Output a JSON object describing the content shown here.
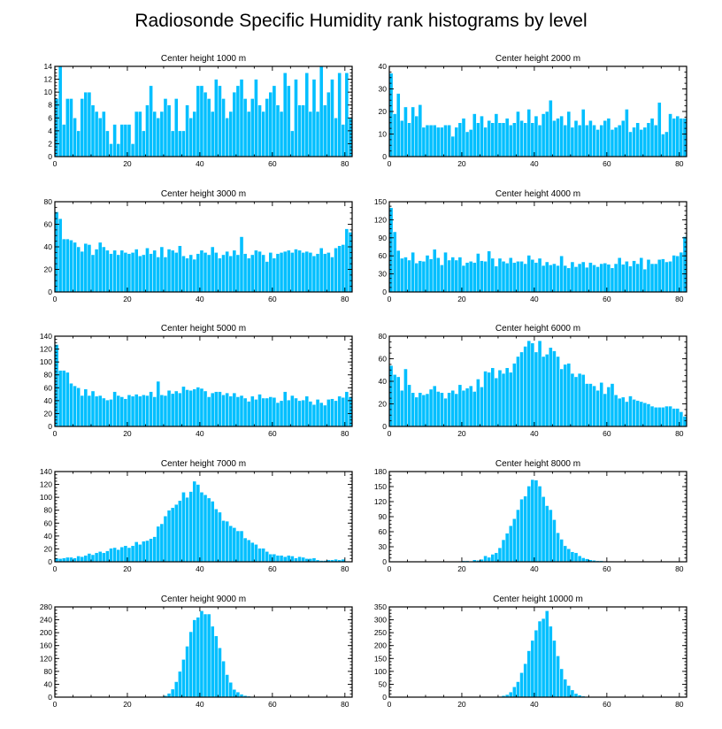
{
  "page_title": "Radiosonde Specific Humidity rank histograms by level",
  "style": {
    "bar_color": "#00bfff",
    "bar_edge_color": "#ffffff",
    "axis_color": "#000000",
    "background": "#ffffff"
  },
  "chart_data": [
    {
      "type": "bar",
      "title": "Center height 1000 m",
      "x_start": 0,
      "xlim": [
        0,
        82
      ],
      "ylim": [
        0,
        14
      ],
      "xticks": [
        0,
        20,
        40,
        60,
        80
      ],
      "yticks": [
        0,
        2,
        4,
        6,
        8,
        10,
        12,
        14
      ],
      "values": [
        9,
        14,
        5,
        9,
        9,
        6,
        4,
        9,
        10,
        10,
        8,
        7,
        6,
        7,
        4,
        2,
        5,
        2,
        5,
        5,
        5,
        2,
        7,
        7,
        4,
        8,
        11,
        7,
        6,
        7,
        9,
        8,
        4,
        9,
        4,
        4,
        8,
        6,
        7,
        11,
        11,
        10,
        9,
        7,
        12,
        11,
        9,
        6,
        7,
        10,
        11,
        12,
        9,
        7,
        9,
        12,
        8,
        7,
        9,
        10,
        11,
        8,
        7,
        13,
        11,
        4,
        12,
        8,
        8,
        13,
        7,
        12,
        7,
        14,
        8,
        10,
        12,
        6,
        13,
        5,
        13,
        6
      ]
    },
    {
      "type": "bar",
      "title": "Center height 2000 m",
      "x_start": 0,
      "xlim": [
        0,
        82
      ],
      "ylim": [
        0,
        40
      ],
      "xticks": [
        0,
        20,
        40,
        60,
        80
      ],
      "yticks": [
        0,
        10,
        20,
        30,
        40
      ],
      "values": [
        37,
        19,
        28,
        16,
        22,
        15,
        22,
        18,
        23,
        13,
        14,
        14,
        14,
        13,
        13,
        14,
        14,
        9,
        13,
        15,
        17,
        11,
        12,
        19,
        15,
        18,
        13,
        16,
        15,
        19,
        15,
        15,
        17,
        14,
        15,
        20,
        16,
        15,
        21,
        15,
        18,
        14,
        19,
        20,
        25,
        16,
        17,
        18,
        14,
        20,
        13,
        16,
        14,
        21,
        14,
        16,
        14,
        12,
        14,
        16,
        17,
        12,
        13,
        14,
        16,
        21,
        11,
        13,
        15,
        12,
        13,
        15,
        17,
        14,
        24,
        10,
        11,
        19,
        17,
        18,
        17,
        17
      ]
    },
    {
      "type": "bar",
      "title": "Center height 3000 m",
      "x_start": 0,
      "xlim": [
        0,
        82
      ],
      "ylim": [
        0,
        80
      ],
      "xticks": [
        0,
        20,
        40,
        60,
        80
      ],
      "yticks": [
        0,
        20,
        40,
        60,
        80
      ],
      "values": [
        71,
        65,
        47,
        47,
        46,
        44,
        40,
        36,
        43,
        42,
        33,
        38,
        44,
        40,
        37,
        34,
        37,
        33,
        37,
        35,
        34,
        35,
        38,
        32,
        33,
        39,
        34,
        37,
        31,
        40,
        31,
        38,
        37,
        35,
        41,
        32,
        30,
        33,
        29,
        34,
        37,
        35,
        33,
        40,
        35,
        30,
        33,
        36,
        32,
        37,
        33,
        49,
        34,
        30,
        33,
        37,
        36,
        33,
        27,
        35,
        30,
        34,
        35,
        36,
        37,
        35,
        38,
        37,
        35,
        36,
        35,
        32,
        34,
        39,
        34,
        35,
        31,
        39,
        41,
        42,
        56,
        53
      ]
    },
    {
      "type": "bar",
      "title": "Center height 4000 m",
      "x_start": 0,
      "xlim": [
        0,
        82
      ],
      "ylim": [
        0,
        150
      ],
      "xticks": [
        0,
        20,
        40,
        60,
        80
      ],
      "yticks": [
        0,
        30,
        60,
        90,
        120,
        150
      ],
      "values": [
        140,
        100,
        69,
        56,
        58,
        53,
        66,
        48,
        52,
        51,
        61,
        55,
        71,
        57,
        45,
        66,
        53,
        58,
        53,
        58,
        44,
        49,
        51,
        49,
        64,
        52,
        51,
        68,
        56,
        43,
        56,
        51,
        48,
        57,
        49,
        51,
        51,
        47,
        61,
        54,
        49,
        56,
        44,
        50,
        45,
        47,
        44,
        60,
        44,
        40,
        50,
        42,
        47,
        50,
        41,
        49,
        45,
        42,
        47,
        48,
        46,
        40,
        47,
        57,
        46,
        51,
        43,
        52,
        47,
        57,
        38,
        54,
        47,
        47,
        54,
        55,
        50,
        51,
        61,
        60,
        66,
        92
      ]
    },
    {
      "type": "bar",
      "title": "Center height 5000 m",
      "x_start": 0,
      "xlim": [
        0,
        82
      ],
      "ylim": [
        0,
        140
      ],
      "xticks": [
        0,
        20,
        40,
        60,
        80
      ],
      "yticks": [
        0,
        20,
        40,
        60,
        80,
        100,
        120,
        140
      ],
      "values": [
        127,
        87,
        87,
        84,
        67,
        63,
        60,
        48,
        58,
        48,
        55,
        47,
        48,
        44,
        41,
        42,
        54,
        48,
        46,
        43,
        49,
        47,
        50,
        47,
        49,
        48,
        54,
        46,
        70,
        49,
        48,
        56,
        51,
        55,
        52,
        62,
        57,
        56,
        58,
        61,
        59,
        55,
        46,
        52,
        54,
        54,
        49,
        52,
        47,
        52,
        46,
        48,
        44,
        39,
        47,
        42,
        50,
        44,
        44,
        46,
        45,
        37,
        40,
        54,
        41,
        48,
        44,
        40,
        41,
        47,
        39,
        34,
        42,
        37,
        33,
        42,
        43,
        40,
        47,
        45,
        54,
        46
      ]
    },
    {
      "type": "bar",
      "title": "Center height 6000 m",
      "x_start": 0,
      "xlim": [
        0,
        82
      ],
      "ylim": [
        0,
        80
      ],
      "xticks": [
        0,
        20,
        40,
        60,
        80
      ],
      "yticks": [
        0,
        20,
        40,
        60,
        80
      ],
      "values": [
        54,
        46,
        44,
        32,
        51,
        37,
        30,
        26,
        30,
        28,
        29,
        33,
        36,
        31,
        30,
        25,
        30,
        32,
        29,
        37,
        32,
        34,
        36,
        31,
        42,
        35,
        49,
        48,
        52,
        43,
        50,
        47,
        52,
        48,
        56,
        62,
        66,
        71,
        76,
        74,
        66,
        76,
        62,
        64,
        70,
        67,
        62,
        51,
        55,
        56,
        47,
        44,
        47,
        46,
        38,
        38,
        36,
        32,
        39,
        29,
        35,
        38,
        28,
        25,
        26,
        22,
        27,
        24,
        23,
        22,
        21,
        20,
        18,
        17,
        17,
        17,
        18,
        18,
        16,
        16,
        13,
        9
      ]
    },
    {
      "type": "bar",
      "title": "Center height 7000 m",
      "x_start": 0,
      "xlim": [
        0,
        82
      ],
      "ylim": [
        0,
        140
      ],
      "xticks": [
        0,
        20,
        40,
        60,
        80
      ],
      "yticks": [
        0,
        20,
        40,
        60,
        80,
        100,
        120,
        140
      ],
      "values": [
        6,
        5,
        6,
        7,
        7,
        6,
        9,
        8,
        10,
        13,
        11,
        14,
        16,
        14,
        17,
        21,
        22,
        19,
        23,
        25,
        22,
        25,
        31,
        27,
        32,
        33,
        36,
        39,
        55,
        59,
        71,
        80,
        84,
        89,
        95,
        108,
        100,
        109,
        125,
        120,
        108,
        104,
        99,
        94,
        82,
        77,
        64,
        63,
        56,
        53,
        48,
        48,
        37,
        34,
        30,
        27,
        21,
        21,
        16,
        12,
        12,
        10,
        10,
        8,
        10,
        9,
        6,
        8,
        7,
        5,
        5,
        6,
        3,
        2,
        2,
        3,
        3,
        4,
        3,
        4,
        1,
        0
      ]
    },
    {
      "type": "bar",
      "title": "Center height 8000 m",
      "x_start": 0,
      "xlim": [
        0,
        82
      ],
      "ylim": [
        0,
        180
      ],
      "xticks": [
        0,
        20,
        40,
        60,
        80
      ],
      "yticks": [
        0,
        30,
        60,
        90,
        120,
        150,
        180
      ],
      "values": [
        1,
        0,
        0,
        0,
        0,
        0,
        0,
        0,
        0,
        0,
        0,
        0,
        0,
        0,
        0,
        0,
        0,
        0,
        0,
        1,
        2,
        2,
        1,
        4,
        3,
        5,
        12,
        9,
        15,
        18,
        28,
        44,
        57,
        72,
        86,
        104,
        125,
        131,
        151,
        164,
        163,
        151,
        130,
        112,
        104,
        84,
        58,
        45,
        32,
        26,
        20,
        18,
        12,
        8,
        6,
        4,
        3,
        2,
        2,
        1,
        1,
        1,
        0,
        0,
        0,
        0,
        0,
        0,
        0,
        0,
        0,
        0,
        0,
        0,
        0,
        0,
        0,
        0,
        0,
        0,
        0,
        0
      ]
    },
    {
      "type": "bar",
      "title": "Center height 9000 m",
      "x_start": 0,
      "xlim": [
        0,
        82
      ],
      "ylim": [
        0,
        280
      ],
      "xticks": [
        0,
        20,
        40,
        60,
        80
      ],
      "yticks": [
        0,
        40,
        80,
        120,
        160,
        200,
        240,
        280
      ],
      "values": [
        0,
        0,
        0,
        0,
        0,
        0,
        0,
        0,
        0,
        0,
        0,
        0,
        0,
        0,
        0,
        0,
        0,
        0,
        0,
        0,
        0,
        0,
        0,
        0,
        0,
        0,
        0,
        0,
        1,
        2,
        5,
        12,
        25,
        48,
        80,
        117,
        158,
        203,
        240,
        248,
        268,
        258,
        258,
        220,
        190,
        153,
        112,
        70,
        46,
        24,
        16,
        9,
        5,
        3,
        2,
        1,
        0,
        0,
        0,
        0,
        0,
        0,
        0,
        0,
        0,
        0,
        0,
        0,
        0,
        0,
        0,
        0,
        0,
        0,
        0,
        0,
        0,
        0,
        0,
        0,
        0,
        0
      ]
    },
    {
      "type": "bar",
      "title": "Center height 10000 m",
      "x_start": 0,
      "xlim": [
        0,
        82
      ],
      "ylim": [
        0,
        350
      ],
      "xticks": [
        0,
        20,
        40,
        60,
        80
      ],
      "yticks": [
        0,
        50,
        100,
        150,
        200,
        250,
        300,
        350
      ],
      "values": [
        0,
        0,
        0,
        0,
        0,
        0,
        0,
        0,
        0,
        0,
        0,
        0,
        0,
        0,
        0,
        0,
        0,
        0,
        0,
        0,
        0,
        0,
        0,
        0,
        0,
        0,
        0,
        0,
        1,
        1,
        3,
        6,
        10,
        20,
        40,
        60,
        95,
        130,
        180,
        220,
        260,
        295,
        305,
        335,
        275,
        220,
        160,
        110,
        70,
        45,
        28,
        14,
        8,
        4,
        2,
        1,
        0,
        0,
        0,
        0,
        0,
        0,
        0,
        0,
        0,
        0,
        0,
        0,
        0,
        0,
        0,
        0,
        0,
        0,
        0,
        0,
        0,
        0,
        0,
        0,
        0,
        0
      ]
    }
  ]
}
